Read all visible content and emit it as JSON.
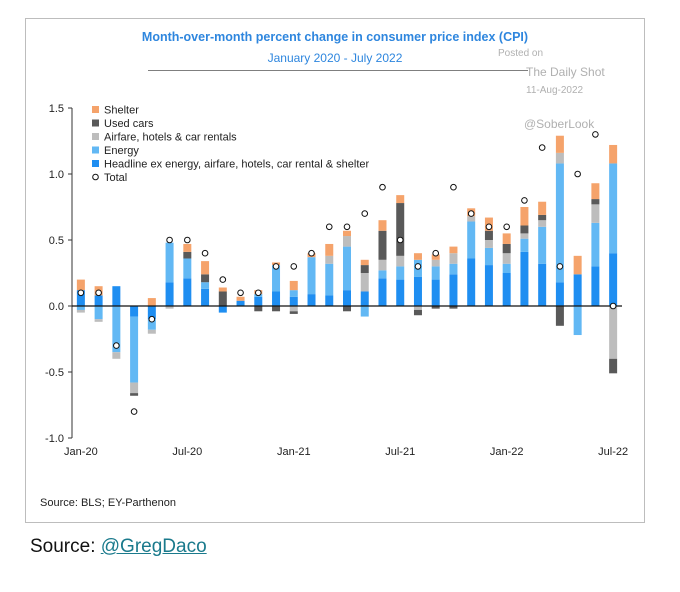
{
  "chart_data": {
    "type": "bar",
    "stacked": true,
    "title": "Month-over-month percent change in consumer price index (CPI)",
    "subtitle": "January 2020 - July 2022",
    "ylim": [
      -1.0,
      1.5
    ],
    "yticks": [
      "1.5",
      "1.0",
      "0.5",
      "0.0",
      "-0.5",
      "-1.0"
    ],
    "ytick_values": [
      1.5,
      1.0,
      0.5,
      0.0,
      -0.5,
      -1.0
    ],
    "x_tick_labels": [
      {
        "index": 0,
        "label": "Jan-20"
      },
      {
        "index": 6,
        "label": "Jul-20"
      },
      {
        "index": 12,
        "label": "Jan-21"
      },
      {
        "index": 18,
        "label": "Jul-21"
      },
      {
        "index": 24,
        "label": "Jan-22"
      },
      {
        "index": 30,
        "label": "Jul-22"
      }
    ],
    "grid": false,
    "legend_position": "top-left",
    "categories": [
      "Jan-20",
      "Feb-20",
      "Mar-20",
      "Apr-20",
      "May-20",
      "Jun-20",
      "Jul-20",
      "Aug-20",
      "Sep-20",
      "Oct-20",
      "Nov-20",
      "Dec-20",
      "Jan-21",
      "Feb-21",
      "Mar-21",
      "Apr-21",
      "May-21",
      "Jun-21",
      "Jul-21",
      "Aug-21",
      "Sep-21",
      "Oct-21",
      "Nov-21",
      "Dec-21",
      "Jan-22",
      "Feb-22",
      "Mar-22",
      "Apr-22",
      "May-22",
      "Jun-22",
      "Jul-22"
    ],
    "series": [
      {
        "name": "Headline ex energy, airfare, hotels, car rental & shelter",
        "color": "#1f8ef1",
        "values": [
          0.12,
          0.08,
          0.15,
          -0.08,
          -0.1,
          0.18,
          0.21,
          0.13,
          -0.05,
          0.04,
          0.07,
          0.11,
          0.07,
          0.09,
          0.08,
          0.12,
          0.11,
          0.21,
          0.2,
          0.22,
          0.2,
          0.24,
          0.36,
          0.31,
          0.25,
          0.41,
          0.32,
          0.18,
          0.24,
          0.3,
          0.4
        ]
      },
      {
        "name": "Energy",
        "color": "#62b8f4",
        "values": [
          -0.03,
          -0.1,
          -0.35,
          -0.5,
          -0.08,
          0.3,
          0.15,
          0.05,
          0.0,
          0.0,
          0.02,
          0.2,
          0.05,
          0.28,
          0.24,
          0.33,
          -0.08,
          0.06,
          0.1,
          0.13,
          0.1,
          0.08,
          0.28,
          0.13,
          0.07,
          0.1,
          0.28,
          0.9,
          -0.22,
          0.33,
          0.68
        ]
      },
      {
        "name": "Airfare, hotels & car rentals",
        "color": "#bdbdbd",
        "values": [
          -0.02,
          -0.02,
          -0.05,
          -0.08,
          -0.03,
          -0.02,
          0.0,
          0.0,
          0.0,
          0.0,
          0.0,
          0.0,
          -0.04,
          0.0,
          0.06,
          0.08,
          0.14,
          0.08,
          0.08,
          -0.03,
          0.05,
          0.08,
          0.04,
          0.06,
          0.08,
          0.04,
          0.05,
          0.08,
          0.0,
          0.14,
          -0.4
        ]
      },
      {
        "name": "Used cars",
        "color": "#595959",
        "values": [
          0.0,
          0.0,
          0.0,
          -0.02,
          0.0,
          0.0,
          0.05,
          0.06,
          0.11,
          0.0,
          -0.04,
          -0.04,
          -0.02,
          0.0,
          0.0,
          -0.04,
          0.06,
          0.22,
          0.4,
          -0.04,
          -0.02,
          -0.02,
          0.0,
          0.07,
          0.07,
          0.06,
          0.04,
          -0.15,
          0.0,
          0.04,
          -0.11
        ]
      },
      {
        "name": "Shelter",
        "color": "#f5a36b",
        "values": [
          0.08,
          0.07,
          0.0,
          0.0,
          0.06,
          0.0,
          0.06,
          0.1,
          0.03,
          0.03,
          0.03,
          0.02,
          0.07,
          0.03,
          0.09,
          0.04,
          0.04,
          0.08,
          0.06,
          0.05,
          0.04,
          0.05,
          0.06,
          0.1,
          0.08,
          0.14,
          0.1,
          0.13,
          0.14,
          0.12,
          0.14
        ]
      }
    ],
    "total": {
      "name": "Total",
      "values": [
        0.1,
        0.1,
        -0.3,
        -0.8,
        -0.1,
        0.5,
        0.5,
        0.4,
        0.2,
        0.1,
        0.1,
        0.3,
        0.3,
        0.4,
        0.6,
        0.6,
        0.7,
        0.9,
        0.5,
        0.3,
        0.4,
        0.9,
        0.7,
        0.6,
        0.6,
        0.8,
        1.2,
        0.3,
        1.0,
        1.3,
        0.0
      ]
    }
  },
  "watermark": {
    "posted_on": "Posted on",
    "source_name": "The Daily Shot",
    "date": "11-Aug-2022",
    "handle": "@SoberLook"
  },
  "source_note": "Source: BLS; EY-Parthenon",
  "credit": {
    "prefix": "Source: ",
    "handle": "@GregDaco"
  }
}
